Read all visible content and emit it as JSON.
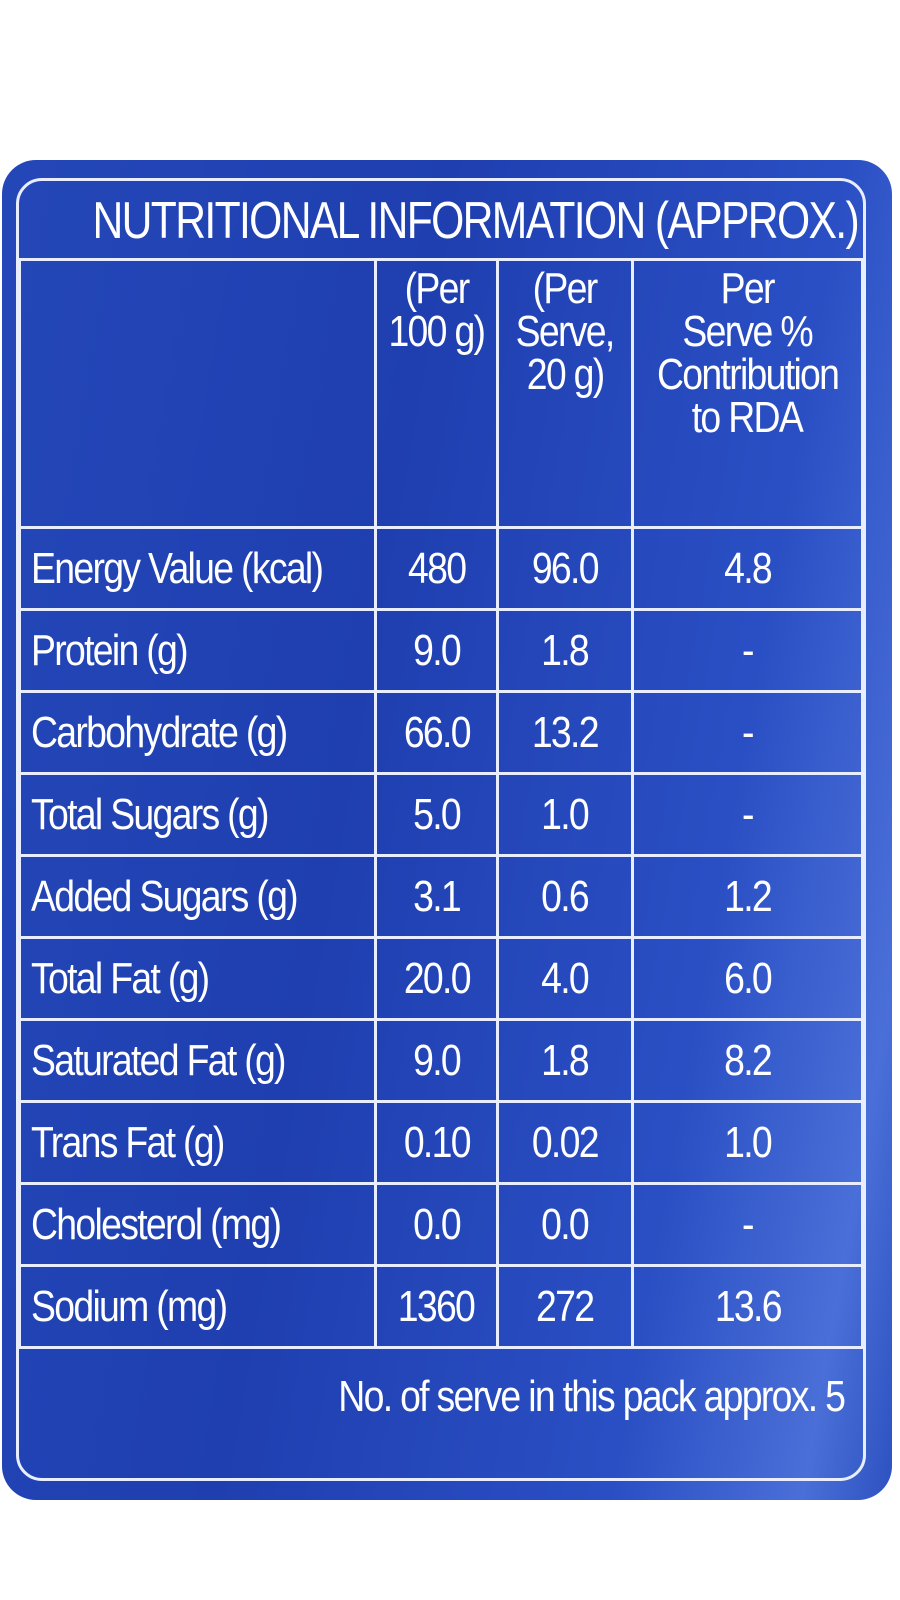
{
  "title": "NUTRITIONAL INFORMATION (APPROX.)",
  "columns": [
    {
      "label": ""
    },
    {
      "label": "(Per 100 g)",
      "lines": [
        "(Per",
        "100 g)"
      ]
    },
    {
      "label": "(Per Serve, 20 g)",
      "lines": [
        "(Per",
        "Serve,",
        "20 g)"
      ]
    },
    {
      "label": "Per Serve % Contribution to RDA",
      "lines": [
        "Per",
        "Serve %",
        "Contribution",
        "to RDA"
      ]
    }
  ],
  "rows": [
    {
      "nutrient": "Energy Value (kcal)",
      "per_100g": "480",
      "per_serve": "96.0",
      "rda": "4.8"
    },
    {
      "nutrient": "Protein (g)",
      "per_100g": "9.0",
      "per_serve": "1.8",
      "rda": "-"
    },
    {
      "nutrient": "Carbohydrate (g)",
      "per_100g": "66.0",
      "per_serve": "13.2",
      "rda": "-"
    },
    {
      "nutrient": "Total Sugars (g)",
      "per_100g": "5.0",
      "per_serve": "1.0",
      "rda": "-"
    },
    {
      "nutrient": "Added Sugars (g)",
      "per_100g": "3.1",
      "per_serve": "0.6",
      "rda": "1.2"
    },
    {
      "nutrient": "Total Fat (g)",
      "per_100g": "20.0",
      "per_serve": "4.0",
      "rda": "6.0"
    },
    {
      "nutrient": "Saturated Fat (g)",
      "per_100g": "9.0",
      "per_serve": "1.8",
      "rda": "8.2"
    },
    {
      "nutrient": "Trans Fat (g)",
      "per_100g": "0.10",
      "per_serve": "0.02",
      "rda": "1.0"
    },
    {
      "nutrient": "Cholesterol (mg)",
      "per_100g": "0.0",
      "per_serve": "0.0",
      "rda": "-"
    },
    {
      "nutrient": "Sodium (mg)",
      "per_100g": "1360",
      "per_serve": "272",
      "rda": "13.6"
    }
  ],
  "footer": "No. of serve in this pack approx. 5",
  "colors": {
    "panel_blue": "#2447b8",
    "line": "#e8eeff",
    "text": "#ffffff"
  }
}
